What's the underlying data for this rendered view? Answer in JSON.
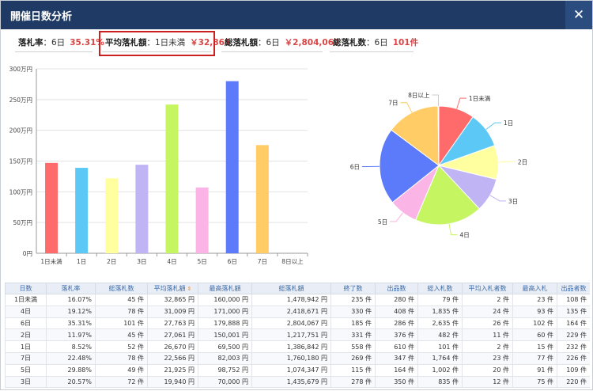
{
  "window": {
    "title": "開催日数分析",
    "close_label": "✕"
  },
  "stats": [
    {
      "label": "落札率",
      "text": "：6日",
      "value": "35.31%"
    },
    {
      "label": "平均落札額",
      "text": "：1日未満",
      "value": "￥32,865"
    },
    {
      "label": "総落札額",
      "text": "：6日",
      "value": "￥2,804,067"
    },
    {
      "label": "総落札数",
      "text": "：6日",
      "value": "101件"
    }
  ],
  "chart_data": [
    {
      "type": "bar",
      "categories": [
        "1日未満",
        "1日",
        "2日",
        "3日",
        "4日",
        "5日",
        "6日",
        "7日",
        "8日以上"
      ],
      "values": [
        1470000,
        1390000,
        1220000,
        1440000,
        2420000,
        1070000,
        2800000,
        1760000,
        0
      ],
      "colors": [
        "#ff6b6b",
        "#5bc8f5",
        "#ffffa0",
        "#c0b4f5",
        "#c6f562",
        "#fbb4e6",
        "#5b7bfa",
        "#ffcc66",
        "#cccccc"
      ],
      "yticks": [
        "0円",
        "50万円",
        "100万円",
        "150万円",
        "200万円",
        "250万円",
        "300万円"
      ],
      "ylim": [
        0,
        3000000
      ],
      "grid": true
    },
    {
      "type": "pie",
      "labels": [
        "1日未満",
        "1日",
        "2日",
        "3日",
        "4日",
        "5日",
        "6日",
        "7日",
        "8日以上"
      ],
      "values": [
        9.3,
        9.3,
        8.8,
        8.8,
        17.5,
        7.5,
        19.9,
        13.9,
        0.2
      ],
      "colors": [
        "#ff6b6b",
        "#5bc8f5",
        "#ffffa0",
        "#c0b4f5",
        "#c6f562",
        "#fbb4e6",
        "#5b7bfa",
        "#ffcc66",
        "#cccccc"
      ]
    }
  ],
  "table": {
    "headers": [
      "日数",
      "落札率",
      "総落札数",
      "平均落札額",
      "最高落札額",
      "総落札額",
      "終了数",
      "出品数",
      "総入札数",
      "平均入札者数",
      "最高入札",
      "出品者数"
    ],
    "sort_icon": "⇕",
    "rows": [
      [
        "1日未満",
        "16.07%",
        "45 件",
        "32,865 円",
        "160,000 円",
        "1,478,942 円",
        "235 件",
        "280 件",
        "79 件",
        "2 件",
        "23 件",
        "108 件"
      ],
      [
        "4日",
        "19.12%",
        "78 件",
        "31,009 円",
        "171,000 円",
        "2,418,671 円",
        "330 件",
        "408 件",
        "1,835 件",
        "24 件",
        "93 件",
        "135 件"
      ],
      [
        "6日",
        "35.31%",
        "101 件",
        "27,763 円",
        "179,888 円",
        "2,804,067 円",
        "185 件",
        "286 件",
        "2,635 件",
        "26 件",
        "102 件",
        "164 件"
      ],
      [
        "2日",
        "11.97%",
        "45 件",
        "27,061 円",
        "150,001 円",
        "1,217,751 円",
        "331 件",
        "376 件",
        "482 件",
        "11 件",
        "60 件",
        "229 件"
      ],
      [
        "1日",
        "8.52%",
        "52 件",
        "26,670 円",
        "69,500 円",
        "1,386,842 円",
        "558 件",
        "610 件",
        "101 件",
        "2 件",
        "15 件",
        "232 件"
      ],
      [
        "7日",
        "22.48%",
        "78 件",
        "22,566 円",
        "82,003 円",
        "1,760,180 円",
        "269 件",
        "347 件",
        "1,764 件",
        "23 件",
        "77 件",
        "226 件"
      ],
      [
        "5日",
        "29.88%",
        "49 件",
        "21,925 円",
        "98,752 円",
        "1,074,347 円",
        "115 件",
        "164 件",
        "1,002 件",
        "20 件",
        "91 件",
        "109 件"
      ],
      [
        "3日",
        "20.57%",
        "72 件",
        "19,940 円",
        "70,000 円",
        "1,435,679 円",
        "278 件",
        "350 件",
        "835 件",
        "12 件",
        "75 件",
        "220 件"
      ]
    ]
  }
}
